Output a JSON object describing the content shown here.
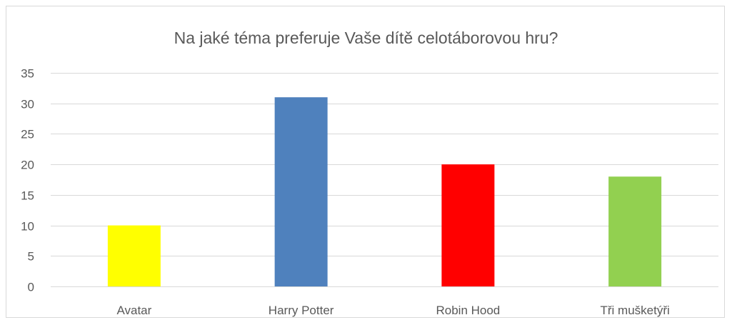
{
  "chart_data": {
    "type": "bar",
    "title": "Na jaké téma preferuje Vaše dítě celotáborovou hru?",
    "categories": [
      "Avatar",
      "Harry Potter",
      "Robin Hood",
      "Tři mušketýři"
    ],
    "values": [
      10,
      31,
      20,
      18
    ],
    "colors": [
      "#ffff00",
      "#4f81bd",
      "#ff0000",
      "#92d050"
    ],
    "ylim": [
      0,
      35
    ],
    "yticks": [
      0,
      5,
      10,
      15,
      20,
      25,
      30,
      35
    ],
    "grid": true,
    "legend": "none"
  }
}
